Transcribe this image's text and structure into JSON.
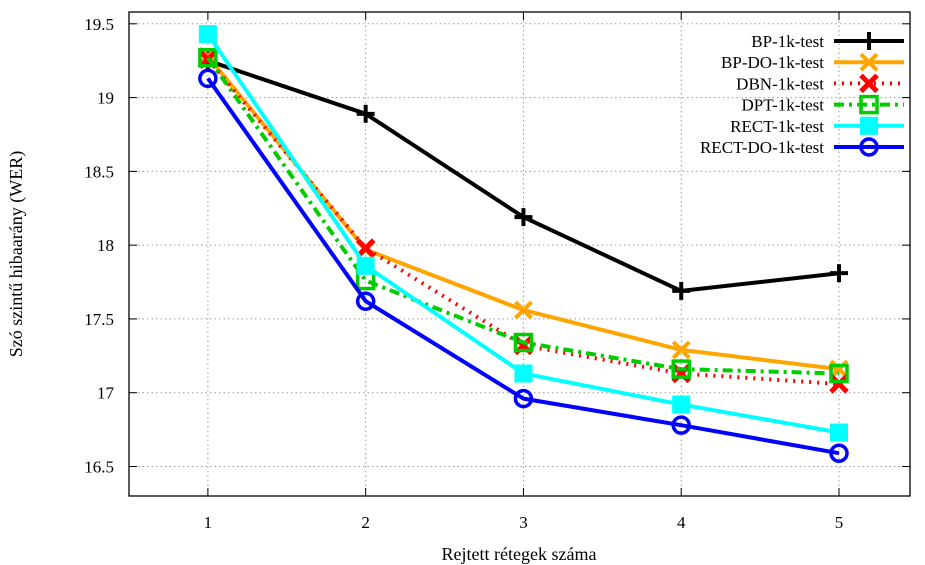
{
  "chart_data": {
    "type": "line",
    "xlabel": "Rejtett rétegek száma",
    "ylabel": "Szó szintű hibaarány (WER)",
    "x": [
      1,
      2,
      3,
      4,
      5
    ],
    "xlim": [
      0.5,
      5.45
    ],
    "ylim": [
      16.3,
      19.58
    ],
    "xticks": [
      "1",
      "2",
      "3",
      "4",
      "5"
    ],
    "yticks": [
      "16.5",
      "17",
      "17.5",
      "18",
      "18.5",
      "19",
      "19.5"
    ],
    "grid": true,
    "legend_position": "top-right",
    "series": [
      {
        "name": "BP-1k-test",
        "color": "#000000",
        "dash": "solid",
        "marker": "plus",
        "values": [
          19.25,
          18.89,
          18.19,
          17.69,
          17.81
        ]
      },
      {
        "name": "BP-DO-1k-test",
        "color": "#ffa500",
        "dash": "solid",
        "marker": "cross",
        "values": [
          19.28,
          17.97,
          17.56,
          17.29,
          17.16
        ]
      },
      {
        "name": "DBN-1k-test",
        "color": "#ff0000",
        "dash": "dotted",
        "marker": "x-bold",
        "values": [
          19.26,
          17.98,
          17.32,
          17.13,
          17.06
        ]
      },
      {
        "name": "DPT-1k-test",
        "color": "#00cc00",
        "dash": "dashdot",
        "marker": "square-open",
        "values": [
          19.27,
          17.76,
          17.34,
          17.16,
          17.13
        ]
      },
      {
        "name": "RECT-1k-test",
        "color": "#00ffff",
        "dash": "solid",
        "marker": "square-filled",
        "values": [
          19.43,
          17.86,
          17.13,
          16.92,
          16.73
        ]
      },
      {
        "name": "RECT-DO-1k-test",
        "color": "#0000ff",
        "dash": "solid",
        "marker": "circle-open",
        "values": [
          19.13,
          17.62,
          16.96,
          16.78,
          16.59
        ]
      }
    ]
  }
}
